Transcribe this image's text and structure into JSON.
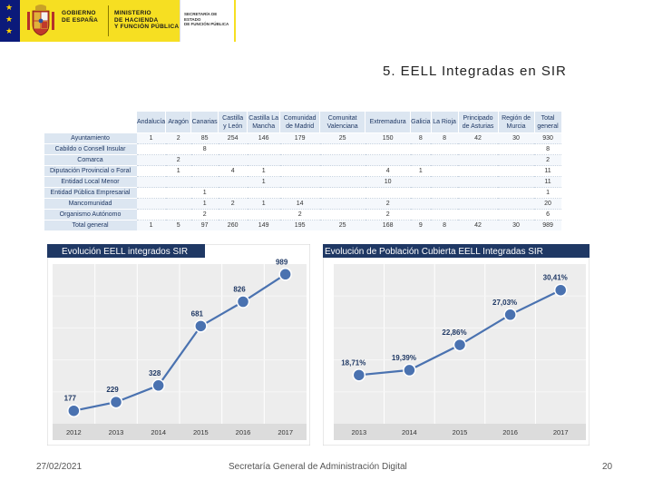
{
  "header": {
    "gobierno": [
      "GOBIERNO",
      "DE ESPAÑA"
    ],
    "ministerio": [
      "MINISTERIO",
      "DE HACIENDA",
      "Y FUNCIÓN PÚBLICA"
    ],
    "secretaria": [
      "SECRETARÍA DE ESTADO",
      "DE FUNCIÓN PÚBLICA"
    ],
    "colors": {
      "stripe": "#0b1a7a",
      "band": "#f6df22"
    }
  },
  "slide_title": "5. EELL Integradas en SIR",
  "table": {
    "columns": [
      [
        "Andalucía"
      ],
      [
        "Aragón"
      ],
      [
        "Canarias"
      ],
      [
        "Castilla",
        "y León"
      ],
      [
        "Castilla La",
        "Mancha"
      ],
      [
        "Comunidad",
        "de Madrid"
      ],
      [
        "Comunitat",
        "Valenciana"
      ],
      [
        "Extremadura"
      ],
      [
        "Galicia"
      ],
      [
        "La Rioja"
      ],
      [
        "Principado",
        "de Asturias"
      ],
      [
        "Región de",
        "Murcia"
      ],
      [
        "Total",
        "general"
      ]
    ],
    "rows": [
      {
        "label": "Ayuntamiento",
        "cells": [
          "1",
          "2",
          "85",
          "254",
          "146",
          "179",
          "25",
          "150",
          "8",
          "8",
          "42",
          "30",
          "930"
        ]
      },
      {
        "label": "Cabildo o Consell Insular",
        "cells": [
          "",
          "",
          "8",
          "",
          "",
          "",
          "",
          "",
          "",
          "",
          "",
          "",
          "8"
        ]
      },
      {
        "label": "Comarca",
        "cells": [
          "",
          "2",
          "",
          "",
          "",
          "",
          "",
          "",
          "",
          "",
          "",
          "",
          "2"
        ]
      },
      {
        "label": "Diputación Provincial o Foral",
        "cells": [
          "",
          "1",
          "",
          "4",
          "1",
          "",
          "",
          "4",
          "1",
          "",
          "",
          "",
          "11"
        ]
      },
      {
        "label": "Entidad Local Menor",
        "cells": [
          "",
          "",
          "",
          "",
          "1",
          "",
          "",
          "10",
          "",
          "",
          "",
          "",
          "11"
        ]
      },
      {
        "label": "Entidad Pública Empresarial",
        "cells": [
          "",
          "",
          "1",
          "",
          "",
          "",
          "",
          "",
          "",
          "",
          "",
          "",
          "1"
        ]
      },
      {
        "label": "Mancomunidad",
        "cells": [
          "",
          "",
          "1",
          "2",
          "1",
          "14",
          "",
          "2",
          "",
          "",
          "",
          "",
          "20"
        ]
      },
      {
        "label": "Organismo Autónomo",
        "cells": [
          "",
          "",
          "2",
          "",
          "",
          "2",
          "",
          "2",
          "",
          "",
          "",
          "",
          "6"
        ]
      },
      {
        "label": "Total general",
        "cells": [
          "1",
          "5",
          "97",
          "260",
          "149",
          "195",
          "25",
          "168",
          "9",
          "8",
          "42",
          "30",
          "989"
        ]
      }
    ]
  },
  "chart_data": [
    {
      "type": "line",
      "title": "Evolución EELL integrados SIR",
      "x": [
        "2012",
        "2013",
        "2014",
        "2015",
        "2016",
        "2017"
      ],
      "values": [
        177,
        229,
        328,
        681,
        826,
        989
      ],
      "labels": [
        "177",
        "229",
        "328",
        "681",
        "826",
        "989"
      ],
      "ylim": [
        100,
        1050
      ],
      "grid": true,
      "color": "#4a72b0"
    },
    {
      "type": "line",
      "title": "Evolución de Población Cubierta EELL Integradas SIR",
      "x": [
        "2013",
        "2014",
        "2015",
        "2016",
        "2017"
      ],
      "values": [
        18.71,
        19.39,
        22.86,
        27.03,
        30.41
      ],
      "labels": [
        "18,71%",
        "19,39%",
        "22,86%",
        "27,03%",
        "30,41%"
      ],
      "ylim": [
        12,
        34
      ],
      "grid": true,
      "color": "#4a72b0"
    }
  ],
  "footer": {
    "date": "27/02/2021",
    "center": "Secretaría General de Administración Digital",
    "page": "20"
  }
}
